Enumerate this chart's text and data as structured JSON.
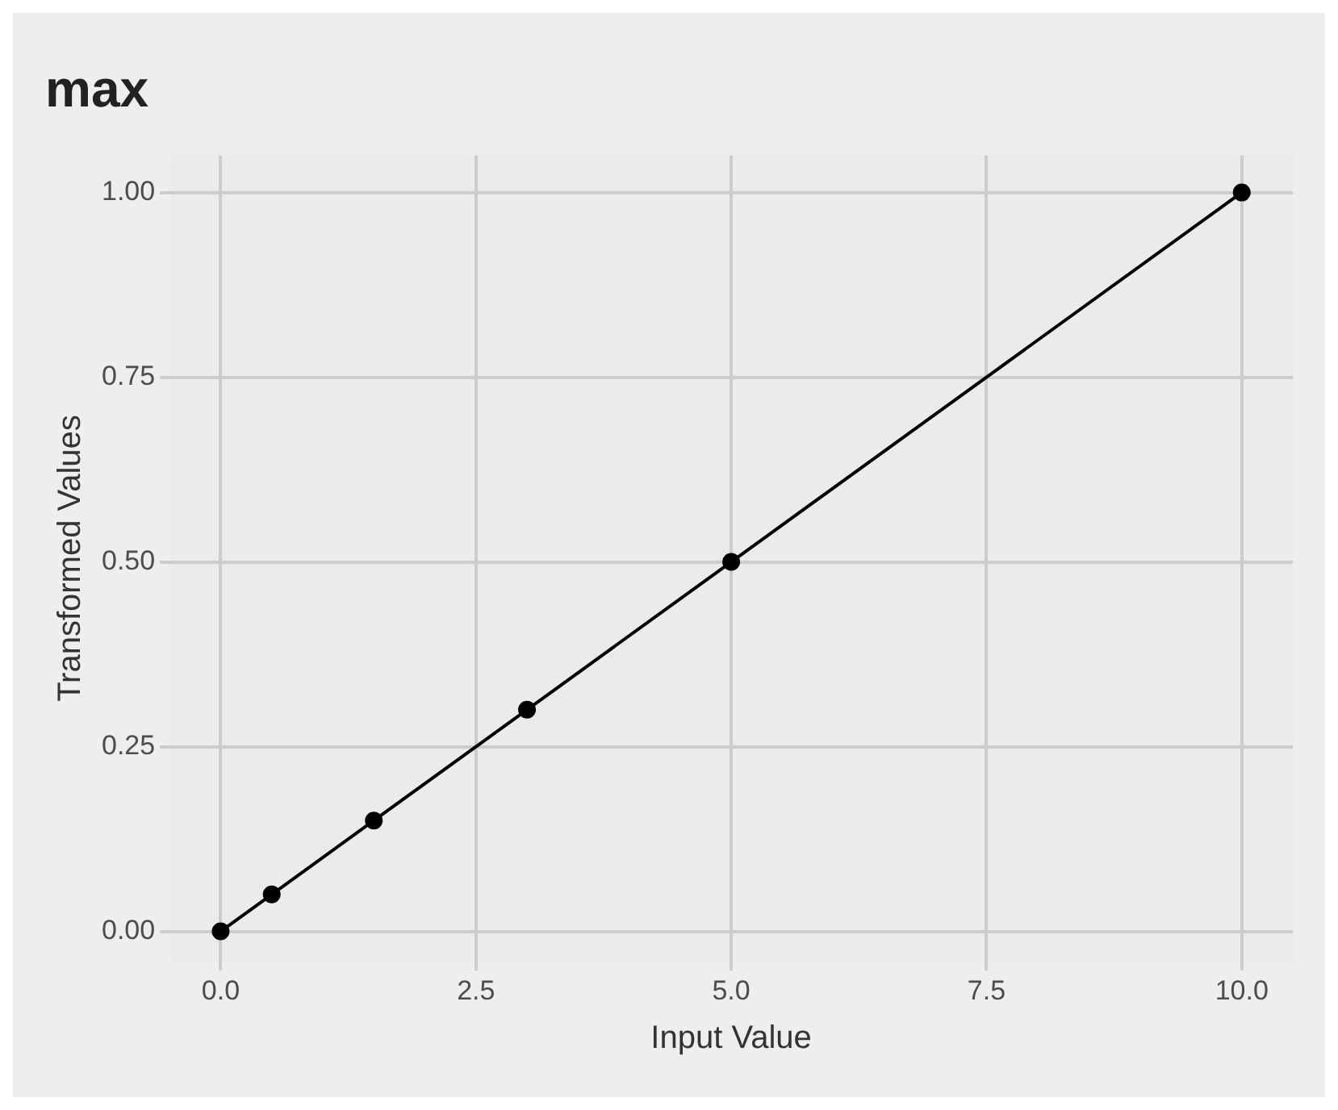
{
  "chart_data": {
    "type": "line",
    "title": "max",
    "xlabel": "Input Value",
    "ylabel": "Transformed Values",
    "x": [
      0,
      0.5,
      1.5,
      3,
      5,
      10
    ],
    "series": [
      {
        "color": "#000000",
        "values": [
          0,
          0.05,
          0.15,
          0.3,
          0.5,
          1
        ]
      }
    ],
    "xlim": [
      -0.5,
      10.5
    ],
    "xticks": [
      {
        "value": 0,
        "label": "0.0"
      },
      2.5,
      {
        "value": 5,
        "label": "5.0"
      },
      7.5,
      {
        "value": 10,
        "label": "10.0"
      }
    ],
    "ylim": [
      -0.04,
      1.05
    ],
    "yticks": [
      {
        "value": 0,
        "label": "0.00"
      },
      0.25,
      {
        "value": 0.5,
        "label": "0.50"
      },
      0.75,
      {
        "value": 1,
        "label": "1.00"
      }
    ],
    "grid": true,
    "legend": false,
    "marker": "circle",
    "line_style": "solid"
  }
}
